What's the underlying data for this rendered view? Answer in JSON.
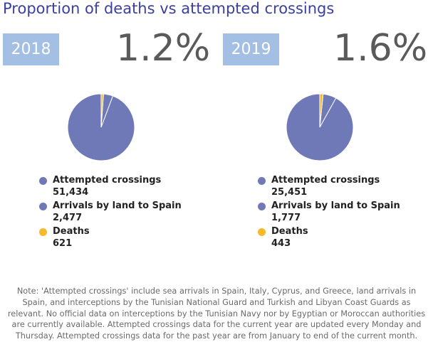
{
  "title": "Proportion of deaths vs attempted crossings",
  "colors": {
    "title": "#3a3fa0",
    "badge": "#a4bfe4",
    "slice_main": "#6f79b8",
    "slice_deaths": "#f7b92b",
    "text": "#222222",
    "note": "#6a6a6a"
  },
  "chart_data": [
    {
      "type": "pie",
      "year": "2018",
      "proportion_label": "1.2%",
      "slices": [
        {
          "label": "Attempted crossings",
          "value": 51434,
          "display": "51,434",
          "color": "#6f79b8"
        },
        {
          "label": "Arrivals by land to Spain",
          "value": 2477,
          "display": "2,477",
          "color": "#6f79b8"
        },
        {
          "label": "Deaths",
          "value": 621,
          "display": "621",
          "color": "#f7b92b"
        }
      ]
    },
    {
      "type": "pie",
      "year": "2019",
      "proportion_label": "1.6%",
      "slices": [
        {
          "label": "Attempted crossings",
          "value": 25451,
          "display": "25,451",
          "color": "#6f79b8"
        },
        {
          "label": "Arrivals by land to Spain",
          "value": 1777,
          "display": "1,777",
          "color": "#6f79b8"
        },
        {
          "label": "Deaths",
          "value": 443,
          "display": "443",
          "color": "#f7b92b"
        }
      ]
    }
  ],
  "note": "Note: 'Attempted crossings' include sea arrivals in Spain, Italy, Cyprus, and Greece, land arrivals in Spain, and interceptions by the Tunisian National Guard and Turkish and Libyan Coast Guards as relevant. No official data on interceptions by the Tunisian Navy nor by Egyptian or Moroccan authorities are currently available. Attempted crossings data for the current year are updated every Monday and Thursday. Attempted crossings data for the past year are from January to end of the current month."
}
